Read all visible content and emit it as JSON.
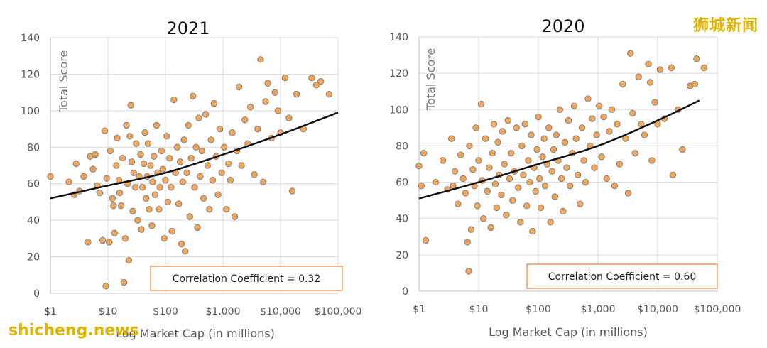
{
  "watermarks": {
    "brand_cn": "狮城新闻",
    "site": "shicheng.news"
  },
  "colors": {
    "point_fill": "#f2a65a",
    "point_stroke": "#7f7f7f",
    "trend": "#111111",
    "box_border": "#ed9b5c",
    "grid": "#d9d9d9"
  },
  "chart_data": [
    {
      "type": "scatter",
      "title": "2021",
      "xlabel": "Log Market Cap (in millions)",
      "ylabel": "Total Score",
      "x_scale": "log",
      "x_ticks": [
        "$1",
        "$10",
        "$100",
        "$1,000",
        "$10,000",
        "$100,000"
      ],
      "xlim": [
        1,
        100000
      ],
      "ylim": [
        0,
        140
      ],
      "y_ticks": [
        "0",
        "20",
        "40",
        "60",
        "80",
        "100",
        "120",
        "140"
      ],
      "grid": true,
      "annotation": "Correlation Coefficient = 0.32",
      "trendline": {
        "type": "exponential",
        "points": [
          [
            1,
            52
          ],
          [
            10,
            59
          ],
          [
            100,
            66
          ],
          [
            1000,
            76
          ],
          [
            10000,
            87
          ],
          [
            100000,
            99
          ]
        ]
      },
      "points": [
        [
          1,
          64
        ],
        [
          2.1,
          61
        ],
        [
          2.8,
          71
        ],
        [
          3.2,
          56
        ],
        [
          4.5,
          28
        ],
        [
          3.8,
          64
        ],
        [
          4.9,
          75
        ],
        [
          5.5,
          68
        ],
        [
          6.5,
          59
        ],
        [
          7.2,
          55
        ],
        [
          8.1,
          29
        ],
        [
          8.8,
          89
        ],
        [
          9.2,
          4
        ],
        [
          9.5,
          63
        ],
        [
          10.5,
          28
        ],
        [
          11,
          78
        ],
        [
          12,
          52
        ],
        [
          12.5,
          48
        ],
        [
          13,
          33
        ],
        [
          14,
          70
        ],
        [
          14.5,
          85
        ],
        [
          15.5,
          62
        ],
        [
          16,
          55
        ],
        [
          17,
          48
        ],
        [
          18,
          74
        ],
        [
          19,
          6
        ],
        [
          20,
          30
        ],
        [
          21,
          92
        ],
        [
          22,
          60
        ],
        [
          23,
          18
        ],
        [
          24,
          86
        ],
        [
          25,
          103
        ],
        [
          26,
          72
        ],
        [
          27,
          45
        ],
        [
          28,
          66
        ],
        [
          30,
          58
        ],
        [
          31,
          82
        ],
        [
          33,
          40
        ],
        [
          35,
          64
        ],
        [
          37,
          76
        ],
        [
          38,
          35
        ],
        [
          40,
          58
        ],
        [
          42,
          71
        ],
        [
          44,
          88
        ],
        [
          46,
          52
        ],
        [
          48,
          64
        ],
        [
          50,
          82
        ],
        [
          52,
          46
        ],
        [
          55,
          70
        ],
        [
          58,
          37
        ],
        [
          60,
          61
        ],
        [
          63,
          75
        ],
        [
          66,
          54
        ],
        [
          70,
          92
        ],
        [
          73,
          66
        ],
        [
          77,
          46
        ],
        [
          80,
          58
        ],
        [
          85,
          78
        ],
        [
          90,
          68
        ],
        [
          95,
          30
        ],
        [
          100,
          62
        ],
        [
          105,
          86
        ],
        [
          110,
          50
        ],
        [
          118,
          74
        ],
        [
          125,
          58
        ],
        [
          130,
          34
        ],
        [
          140,
          106
        ],
        [
          150,
          66
        ],
        [
          160,
          80
        ],
        [
          170,
          49
        ],
        [
          180,
          72
        ],
        [
          190,
          27
        ],
        [
          200,
          61
        ],
        [
          210,
          84
        ],
        [
          220,
          23
        ],
        [
          235,
          66
        ],
        [
          250,
          92
        ],
        [
          265,
          42
        ],
        [
          280,
          74
        ],
        [
          300,
          108
        ],
        [
          320,
          58
        ],
        [
          340,
          80
        ],
        [
          360,
          36
        ],
        [
          380,
          96
        ],
        [
          400,
          64
        ],
        [
          430,
          78
        ],
        [
          460,
          52
        ],
        [
          500,
          98
        ],
        [
          540,
          70
        ],
        [
          580,
          46
        ],
        [
          620,
          84
        ],
        [
          660,
          62
        ],
        [
          700,
          104
        ],
        [
          760,
          75
        ],
        [
          820,
          54
        ],
        [
          880,
          90
        ],
        [
          950,
          66
        ],
        [
          1050,
          80
        ],
        [
          1150,
          46
        ],
        [
          1250,
          71
        ],
        [
          1350,
          62
        ],
        [
          1450,
          88
        ],
        [
          1600,
          42
        ],
        [
          1750,
          78
        ],
        [
          1900,
          113
        ],
        [
          2100,
          70
        ],
        [
          2400,
          95
        ],
        [
          2700,
          82
        ],
        [
          3000,
          102
        ],
        [
          3500,
          65
        ],
        [
          4000,
          90
        ],
        [
          4500,
          128
        ],
        [
          5000,
          61
        ],
        [
          5500,
          105
        ],
        [
          6000,
          115
        ],
        [
          7000,
          85
        ],
        [
          8000,
          110
        ],
        [
          9000,
          100
        ],
        [
          10000,
          88
        ],
        [
          12000,
          118
        ],
        [
          14000,
          96
        ],
        [
          16000,
          56
        ],
        [
          19000,
          109
        ],
        [
          25000,
          90
        ],
        [
          35000,
          118
        ],
        [
          42000,
          114
        ],
        [
          50000,
          116
        ],
        [
          70000,
          109
        ],
        [
          2.6,
          54
        ],
        [
          6,
          76
        ]
      ]
    },
    {
      "type": "scatter",
      "title": "2020",
      "xlabel": "Log Market Cap (in millions)",
      "ylabel": "Total Score",
      "x_scale": "log",
      "x_ticks": [
        "$1",
        "$10",
        "$100",
        "$1,000",
        "$10,000",
        "$100,000"
      ],
      "xlim": [
        1,
        100000
      ],
      "ylim": [
        0,
        140
      ],
      "y_ticks": [
        "0",
        "20",
        "40",
        "60",
        "80",
        "100",
        "120",
        "140"
      ],
      "grid": true,
      "annotation": "Correlation Coefficient = 0.60",
      "trendline": {
        "type": "exponential",
        "points": [
          [
            1,
            51
          ],
          [
            10,
            60
          ],
          [
            100,
            70
          ],
          [
            1000,
            80
          ],
          [
            10000,
            94
          ],
          [
            50000,
            105
          ]
        ]
      },
      "points": [
        [
          1,
          69
        ],
        [
          1.1,
          58
        ],
        [
          1.2,
          76
        ],
        [
          1.3,
          28
        ],
        [
          2.5,
          72
        ],
        [
          3,
          56
        ],
        [
          3.5,
          84
        ],
        [
          4,
          66
        ],
        [
          4.5,
          48
        ],
        [
          5,
          75
        ],
        [
          5.5,
          62
        ],
        [
          6,
          54
        ],
        [
          6.5,
          27
        ],
        [
          6.8,
          11
        ],
        [
          7,
          80
        ],
        [
          7.5,
          34
        ],
        [
          8,
          67
        ],
        [
          8.5,
          58
        ],
        [
          9,
          90
        ],
        [
          9.5,
          47
        ],
        [
          10,
          72
        ],
        [
          11,
          103
        ],
        [
          11.5,
          61
        ],
        [
          12,
          40
        ],
        [
          13,
          84
        ],
        [
          14,
          55
        ],
        [
          15,
          68
        ],
        [
          16,
          35
        ],
        [
          17,
          76
        ],
        [
          18,
          92
        ],
        [
          19,
          59
        ],
        [
          20,
          46
        ],
        [
          21,
          82
        ],
        [
          22,
          64
        ],
        [
          24,
          53
        ],
        [
          25,
          88
        ],
        [
          27,
          70
        ],
        [
          29,
          42
        ],
        [
          31,
          94
        ],
        [
          33,
          62
        ],
        [
          35,
          76
        ],
        [
          37,
          50
        ],
        [
          40,
          66
        ],
        [
          43,
          90
        ],
        [
          46,
          57
        ],
        [
          50,
          38
        ],
        [
          53,
          80
        ],
        [
          56,
          64
        ],
        [
          60,
          92
        ],
        [
          64,
          47
        ],
        [
          68,
          72
        ],
        [
          72,
          60
        ],
        [
          76,
          86
        ],
        [
          80,
          33
        ],
        [
          85,
          68
        ],
        [
          90,
          55
        ],
        [
          95,
          78
        ],
        [
          100,
          96
        ],
        [
          105,
          62
        ],
        [
          110,
          46
        ],
        [
          118,
          74
        ],
        [
          125,
          84
        ],
        [
          130,
          58
        ],
        [
          140,
          70
        ],
        [
          150,
          90
        ],
        [
          160,
          38
        ],
        [
          170,
          66
        ],
        [
          180,
          78
        ],
        [
          190,
          52
        ],
        [
          200,
          86
        ],
        [
          215,
          72
        ],
        [
          230,
          100
        ],
        [
          245,
          62
        ],
        [
          260,
          44
        ],
        [
          280,
          82
        ],
        [
          300,
          68
        ],
        [
          320,
          94
        ],
        [
          340,
          58
        ],
        [
          370,
          76
        ],
        [
          400,
          102
        ],
        [
          430,
          84
        ],
        [
          460,
          64
        ],
        [
          500,
          48
        ],
        [
          540,
          90
        ],
        [
          580,
          72
        ],
        [
          620,
          60
        ],
        [
          680,
          106
        ],
        [
          740,
          80
        ],
        [
          800,
          95
        ],
        [
          870,
          68
        ],
        [
          950,
          86
        ],
        [
          1050,
          102
        ],
        [
          1150,
          74
        ],
        [
          1250,
          96
        ],
        [
          1400,
          62
        ],
        [
          1550,
          88
        ],
        [
          1700,
          100
        ],
        [
          1900,
          58
        ],
        [
          2100,
          92
        ],
        [
          2300,
          70
        ],
        [
          2600,
          114
        ],
        [
          2900,
          84
        ],
        [
          3200,
          54
        ],
        [
          3500,
          131
        ],
        [
          3800,
          98
        ],
        [
          4200,
          76
        ],
        [
          4800,
          118
        ],
        [
          5300,
          92
        ],
        [
          6000,
          86
        ],
        [
          7000,
          125
        ],
        [
          7500,
          115
        ],
        [
          8000,
          72
        ],
        [
          9000,
          104
        ],
        [
          10000,
          92
        ],
        [
          11000,
          122
        ],
        [
          13000,
          95
        ],
        [
          17000,
          123
        ],
        [
          18000,
          64
        ],
        [
          26000,
          78
        ],
        [
          35000,
          113
        ],
        [
          42000,
          114
        ],
        [
          45000,
          128
        ],
        [
          60000,
          123
        ],
        [
          3.7,
          58
        ],
        [
          22000,
          100
        ],
        [
          1.9,
          60
        ]
      ]
    }
  ]
}
